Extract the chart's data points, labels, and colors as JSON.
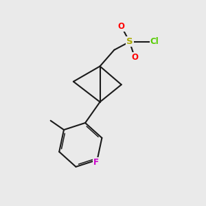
{
  "background_color": "#eaeaea",
  "bond_color": "#1a1a1a",
  "S_color": "#aaaa00",
  "O_color": "#ff0000",
  "Cl_color": "#55cc00",
  "F_color": "#cc00cc",
  "line_width": 1.5,
  "figsize": [
    3.0,
    3.0
  ],
  "dpi": 100,
  "xlim": [
    0.0,
    10.0
  ],
  "ylim": [
    0.5,
    10.5
  ],
  "font_size": 8.5
}
